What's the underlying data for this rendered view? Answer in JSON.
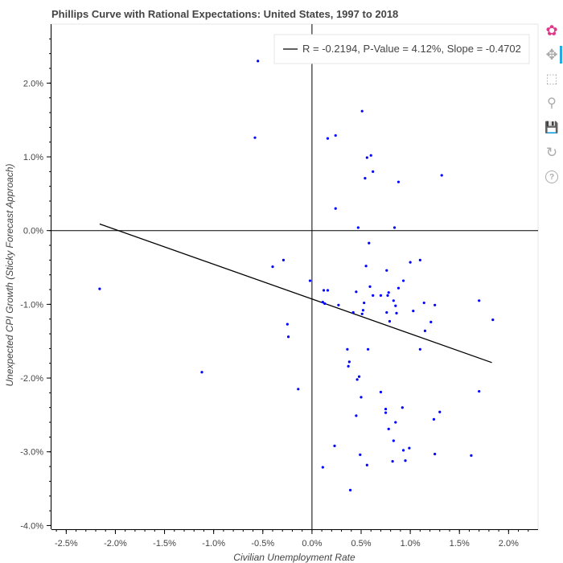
{
  "chart_data": {
    "type": "scatter",
    "title": "Phillips Curve with Rational Expectations: United States, 1997 to 2018",
    "xlabel": "Civilian Unemployment Rate",
    "ylabel": "Unexpected CPI Growth (Sticky Forecast Approach)",
    "xlim": [
      -2.65,
      2.3
    ],
    "ylim": [
      -4.05,
      2.8
    ],
    "x_ticks": [
      {
        "value": -2.5,
        "label": "-2.5%"
      },
      {
        "value": -2.0,
        "label": "-2.0%"
      },
      {
        "value": -1.5,
        "label": "-1.5%"
      },
      {
        "value": -1.0,
        "label": "-1.0%"
      },
      {
        "value": -0.5,
        "label": "-0.5%"
      },
      {
        "value": 0.0,
        "label": "0.0%"
      },
      {
        "value": 0.5,
        "label": "0.5%"
      },
      {
        "value": 1.0,
        "label": "1.0%"
      },
      {
        "value": 1.5,
        "label": "1.5%"
      },
      {
        "value": 2.0,
        "label": "2.0%"
      }
    ],
    "y_ticks": [
      {
        "value": 2.0,
        "label": "2.0%"
      },
      {
        "value": 1.0,
        "label": "1.0%"
      },
      {
        "value": 0.0,
        "label": "0.0%"
      },
      {
        "value": -1.0,
        "label": "-1.0%"
      },
      {
        "value": -2.0,
        "label": "-2.0%"
      },
      {
        "value": -3.0,
        "label": "-3.0%"
      },
      {
        "value": -4.0,
        "label": "-4.0%"
      }
    ],
    "grid": false,
    "zero_lines": true,
    "point_color": "#0000ff",
    "line_color": "#000000",
    "legend_position": "top-right",
    "regression": {
      "label": "R = -0.2194, P-Value = 4.12%, Slope = -0.4702",
      "x": [
        -2.16,
        1.83
      ],
      "y": [
        0.09,
        -1.79
      ]
    },
    "points": [
      [
        -0.55,
        2.3
      ],
      [
        -0.58,
        1.26
      ],
      [
        0.51,
        1.62
      ],
      [
        0.16,
        1.25
      ],
      [
        0.24,
        1.29
      ],
      [
        0.6,
        1.02
      ],
      [
        0.56,
        0.99
      ],
      [
        0.62,
        0.8
      ],
      [
        0.54,
        0.71
      ],
      [
        0.88,
        0.66
      ],
      [
        1.32,
        0.75
      ],
      [
        0.24,
        0.3
      ],
      [
        0.47,
        0.04
      ],
      [
        0.84,
        0.04
      ],
      [
        0.58,
        -0.17
      ],
      [
        -0.29,
        -0.4
      ],
      [
        -0.4,
        -0.49
      ],
      [
        0.55,
        -0.48
      ],
      [
        1.0,
        -0.43
      ],
      [
        1.1,
        -0.4
      ],
      [
        0.76,
        -0.54
      ],
      [
        0.93,
        -0.68
      ],
      [
        -0.02,
        -0.68
      ],
      [
        -2.16,
        -0.79
      ],
      [
        0.12,
        -0.81
      ],
      [
        0.16,
        -0.81
      ],
      [
        0.45,
        -0.83
      ],
      [
        0.59,
        -0.76
      ],
      [
        0.88,
        -0.78
      ],
      [
        0.62,
        -0.88
      ],
      [
        0.7,
        -0.88
      ],
      [
        0.78,
        -0.84
      ],
      [
        0.77,
        -0.88
      ],
      [
        0.83,
        -0.95
      ],
      [
        0.11,
        -0.97
      ],
      [
        0.13,
        -0.99
      ],
      [
        0.27,
        -1.01
      ],
      [
        0.53,
        -0.98
      ],
      [
        1.14,
        -0.98
      ],
      [
        1.25,
        -1.01
      ],
      [
        1.7,
        -0.95
      ],
      [
        0.85,
        -1.02
      ],
      [
        0.42,
        -1.11
      ],
      [
        0.52,
        -1.08
      ],
      [
        0.51,
        -1.13
      ],
      [
        0.76,
        -1.11
      ],
      [
        0.86,
        -1.12
      ],
      [
        1.03,
        -1.09
      ],
      [
        1.21,
        -1.24
      ],
      [
        1.84,
        -1.21
      ],
      [
        0.79,
        -1.23
      ],
      [
        -0.25,
        -1.27
      ],
      [
        1.15,
        -1.36
      ],
      [
        -0.24,
        -1.44
      ],
      [
        1.1,
        -1.61
      ],
      [
        0.36,
        -1.61
      ],
      [
        0.57,
        -1.61
      ],
      [
        0.38,
        -1.78
      ],
      [
        0.37,
        -1.84
      ],
      [
        -1.12,
        -1.92
      ],
      [
        0.46,
        -2.02
      ],
      [
        0.48,
        -1.98
      ],
      [
        -0.14,
        -2.15
      ],
      [
        1.7,
        -2.18
      ],
      [
        0.7,
        -2.19
      ],
      [
        0.5,
        -2.26
      ],
      [
        0.92,
        -2.4
      ],
      [
        0.75,
        -2.42
      ],
      [
        0.75,
        -2.47
      ],
      [
        1.3,
        -2.46
      ],
      [
        0.45,
        -2.51
      ],
      [
        0.85,
        -2.6
      ],
      [
        1.24,
        -2.56
      ],
      [
        0.78,
        -2.69
      ],
      [
        0.83,
        -2.85
      ],
      [
        0.23,
        -2.92
      ],
      [
        0.99,
        -2.95
      ],
      [
        0.93,
        -2.98
      ],
      [
        0.49,
        -3.04
      ],
      [
        1.25,
        -3.03
      ],
      [
        1.62,
        -3.05
      ],
      [
        0.82,
        -3.13
      ],
      [
        0.95,
        -3.12
      ],
      [
        0.56,
        -3.18
      ],
      [
        0.11,
        -3.21
      ],
      [
        0.39,
        -3.52
      ]
    ]
  },
  "toolbar": {
    "tools": [
      {
        "name": "bokeh-logo",
        "glyph": "✿"
      },
      {
        "name": "pan-icon",
        "glyph": "✥"
      },
      {
        "name": "box-zoom-icon",
        "glyph": "⬚"
      },
      {
        "name": "wheel-zoom-icon",
        "glyph": "⚲"
      },
      {
        "name": "save-icon",
        "glyph": "💾"
      },
      {
        "name": "reset-icon",
        "glyph": "↻"
      },
      {
        "name": "help-icon",
        "glyph": "?"
      }
    ]
  }
}
